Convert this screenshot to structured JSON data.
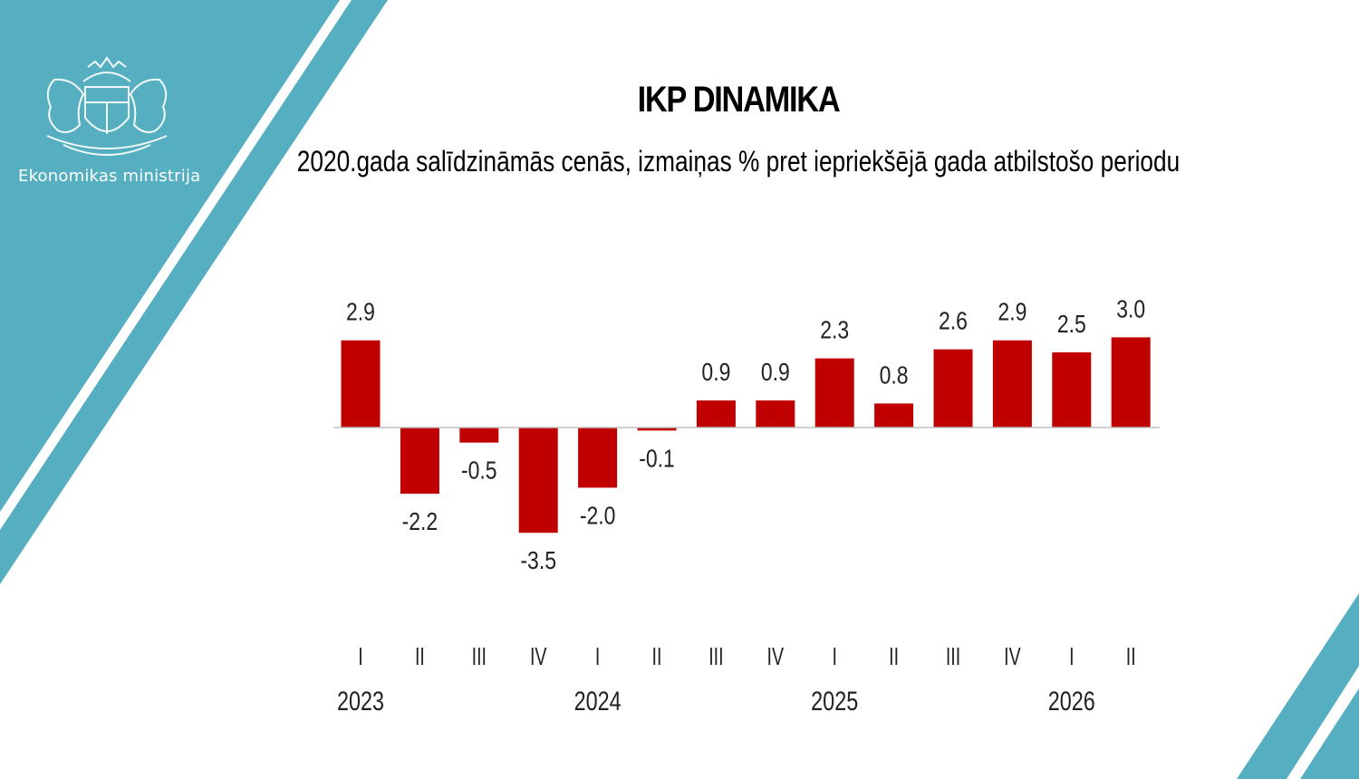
{
  "brand": {
    "org_name": "Ekonomikas ministrija",
    "logo": "latvia-coat-of-arms-icon",
    "accent_color": "#55AFC0"
  },
  "chart_data": {
    "type": "bar",
    "title": "IKP DINAMIKA",
    "subtitle": "2020.gada salīdzināmās cenās, izmaiņas % pret iepriekšējā gada atbilstošo periodu",
    "categories": [
      "I",
      "II",
      "III",
      "IV",
      "I",
      "II",
      "III",
      "IV",
      "I",
      "II",
      "III",
      "IV",
      "I",
      "II"
    ],
    "year_labels": [
      {
        "label": "2023",
        "category_index": 0
      },
      {
        "label": "2024",
        "category_index": 4
      },
      {
        "label": "2025",
        "category_index": 8
      },
      {
        "label": "2026",
        "category_index": 12
      }
    ],
    "values": [
      2.9,
      -2.2,
      -0.5,
      -3.5,
      -2.0,
      -0.1,
      0.9,
      0.9,
      2.3,
      0.8,
      2.6,
      2.9,
      2.5,
      3.0
    ],
    "value_labels": [
      "2.9",
      "-2.2",
      "-0.5",
      "-3.5",
      "-2.0",
      "-0.1",
      "0.9",
      "0.9",
      "2.3",
      "0.8",
      "2.6",
      "2.9",
      "2.5",
      "3.0"
    ],
    "bar_color": "#C00000",
    "xlabel": "",
    "ylabel": "",
    "grid": false,
    "legend": "none"
  }
}
